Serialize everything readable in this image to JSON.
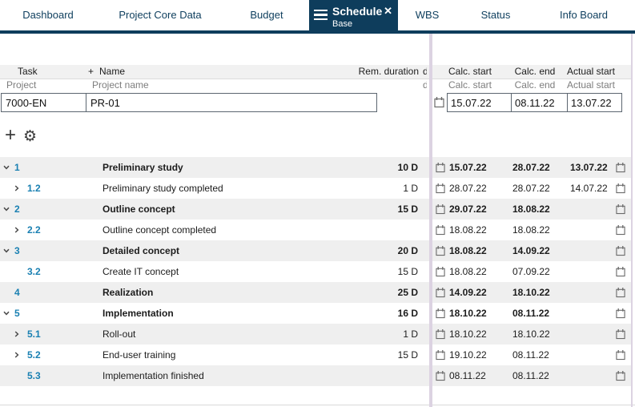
{
  "tabs": [
    {
      "label": "Dashboard"
    },
    {
      "label": "Project Core Data"
    },
    {
      "label": "Budget"
    },
    {
      "label": "Schedule",
      "sublabel": "Base",
      "active": true
    },
    {
      "label": "WBS"
    },
    {
      "label": "Status"
    },
    {
      "label": "Info Board"
    }
  ],
  "active_tab": {
    "close_icon": "✕"
  },
  "toolbar": {
    "add_label": "+",
    "settings_icon": "⚙"
  },
  "grid": {
    "left_headers": {
      "task": "Task",
      "plus": "+",
      "name": "Name",
      "rem_duration": "Rem. duration",
      "truncated_fragment": "d"
    },
    "right_headers": {
      "calc_start": "Calc. start",
      "calc_end": "Calc. end",
      "actual_start": "Actual start"
    },
    "filter_row": {
      "task_hint": "Project",
      "name_hint": "Project name",
      "calc_start_hint": "Calc. start",
      "calc_end_hint": "Calc. end",
      "actual_start_hint": "Actual start",
      "truncated_fragment": "d"
    },
    "filter_inputs": {
      "task": "7000-EN",
      "name": "PR-01",
      "calc_start": "15.07.22",
      "calc_end": "08.11.22",
      "actual_start": "13.07.22"
    },
    "rows": [
      {
        "num": "1",
        "chevron": "down",
        "level": 0,
        "name": "Preliminary study",
        "rem_duration": "10 D",
        "calc_start": "15.07.22",
        "calc_end": "28.07.22",
        "actual_start": "13.07.22",
        "summary": true,
        "shaded": true
      },
      {
        "num": "1.2",
        "chevron": "right",
        "level": 1,
        "name": "Preliminary study completed",
        "rem_duration": "1 D",
        "calc_start": "28.07.22",
        "calc_end": "28.07.22",
        "actual_start": "14.07.22",
        "summary": false,
        "shaded": false
      },
      {
        "num": "2",
        "chevron": "down",
        "level": 0,
        "name": "Outline concept",
        "rem_duration": "15 D",
        "calc_start": "29.07.22",
        "calc_end": "18.08.22",
        "actual_start": "",
        "summary": true,
        "shaded": true
      },
      {
        "num": "2.2",
        "chevron": "right",
        "level": 1,
        "name": "Outline concept completed",
        "rem_duration": "",
        "calc_start": "18.08.22",
        "calc_end": "18.08.22",
        "actual_start": "",
        "summary": false,
        "shaded": false
      },
      {
        "num": "3",
        "chevron": "down",
        "level": 0,
        "name": "Detailed concept",
        "rem_duration": "20 D",
        "calc_start": "18.08.22",
        "calc_end": "14.09.22",
        "actual_start": "",
        "summary": true,
        "shaded": true
      },
      {
        "num": "3.2",
        "chevron": "none",
        "level": 1,
        "name": "Create IT concept",
        "rem_duration": "15 D",
        "calc_start": "18.08.22",
        "calc_end": "07.09.22",
        "actual_start": "",
        "summary": false,
        "shaded": false
      },
      {
        "num": "4",
        "chevron": "none",
        "level": 0,
        "name": "Realization",
        "rem_duration": "25 D",
        "calc_start": "14.09.22",
        "calc_end": "18.10.22",
        "actual_start": "",
        "summary": true,
        "shaded": true
      },
      {
        "num": "5",
        "chevron": "down",
        "level": 0,
        "name": "Implementation",
        "rem_duration": "16 D",
        "calc_start": "18.10.22",
        "calc_end": "08.11.22",
        "actual_start": "",
        "summary": true,
        "shaded": false
      },
      {
        "num": "5.1",
        "chevron": "right",
        "level": 1,
        "name": "Roll-out",
        "rem_duration": "1 D",
        "calc_start": "18.10.22",
        "calc_end": "18.10.22",
        "actual_start": "",
        "summary": false,
        "shaded": true
      },
      {
        "num": "5.2",
        "chevron": "right",
        "level": 1,
        "name": "End-user training",
        "rem_duration": "15 D",
        "calc_start": "19.10.22",
        "calc_end": "08.11.22",
        "actual_start": "",
        "summary": false,
        "shaded": false
      },
      {
        "num": "5.3",
        "chevron": "none",
        "level": 1,
        "name": "Implementation finished",
        "rem_duration": "",
        "calc_start": "08.11.22",
        "calc_end": "08.11.22",
        "actual_start": "",
        "summary": false,
        "shaded": true
      }
    ]
  },
  "colors": {
    "navy": "#0e3d5c",
    "task_number_blue": "#1a80b2",
    "splitter_purple": "#dcd3e2",
    "row_shade": "#efefef",
    "header_bg": "#f1f1f1",
    "hint_gray": "#7d7d7d"
  }
}
